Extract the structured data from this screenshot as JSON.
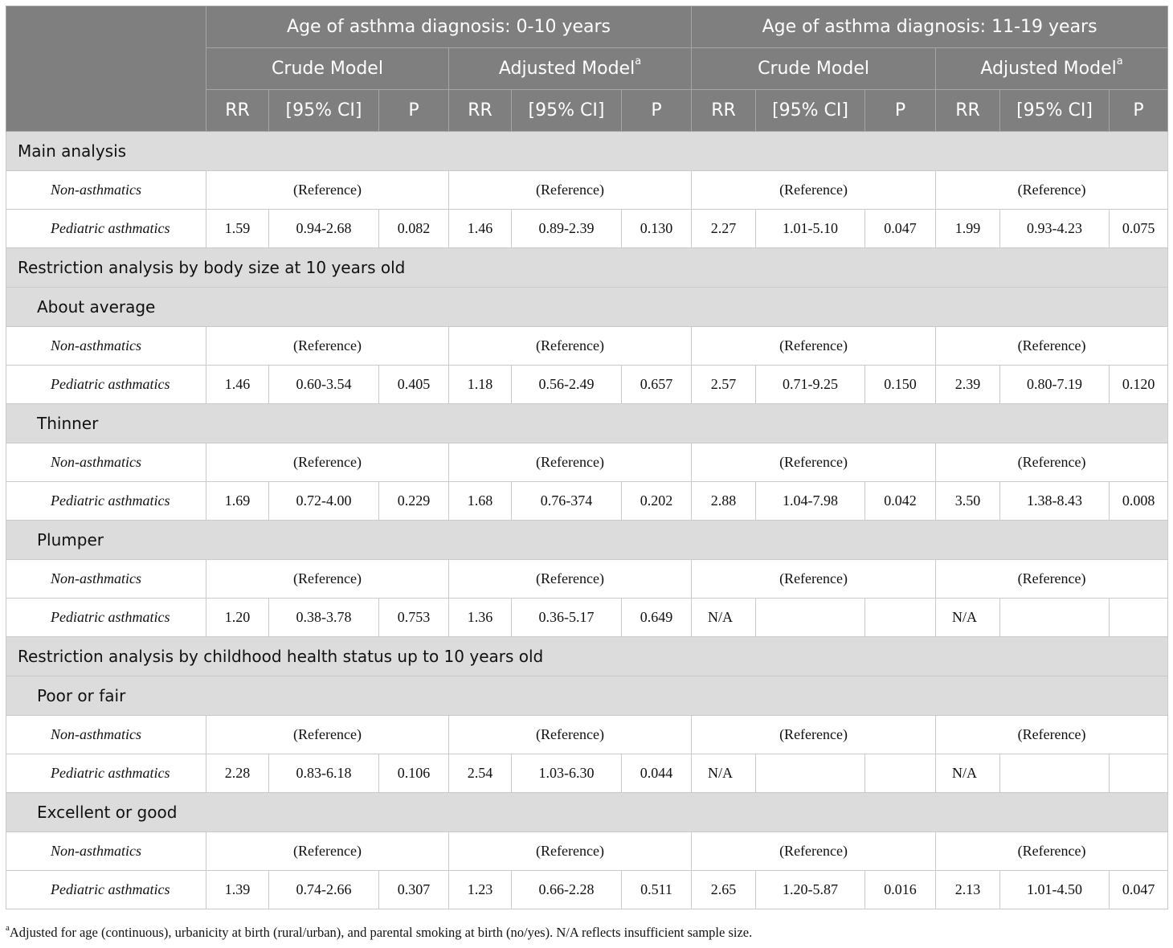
{
  "header": {
    "group_left": "Age of asthma diagnosis: 0-10 years",
    "group_right": "Age of asthma diagnosis: 11-19 years",
    "crude_model": "Crude Model",
    "adjusted_model": "Adjusted Model",
    "adjusted_sup": "a",
    "col_rr": "RR",
    "col_ci": "[95% CI]",
    "col_p": "P"
  },
  "rows": [
    {
      "type": "section",
      "label": "Main analysis"
    },
    {
      "type": "ref",
      "label": "Non-asthmatics",
      "ref": "(Reference)"
    },
    {
      "type": "data",
      "label": "Pediatric asthmatics",
      "values": [
        "1.59",
        "0.94-2.68",
        "0.082",
        "1.46",
        "0.89-2.39",
        "0.130",
        "2.27",
        "1.01-5.10",
        "0.047",
        "1.99",
        "0.93-4.23",
        "0.075"
      ]
    },
    {
      "type": "section",
      "label": "Restriction analysis by body size at 10 years old"
    },
    {
      "type": "sub",
      "label": "About average"
    },
    {
      "type": "ref",
      "label": "Non-asthmatics",
      "ref": "(Reference)"
    },
    {
      "type": "data",
      "label": "Pediatric asthmatics",
      "values": [
        "1.46",
        "0.60-3.54",
        "0.405",
        "1.18",
        "0.56-2.49",
        "0.657",
        "2.57",
        "0.71-9.25",
        "0.150",
        "2.39",
        "0.80-7.19",
        "0.120"
      ]
    },
    {
      "type": "sub",
      "label": "Thinner"
    },
    {
      "type": "ref",
      "label": "Non-asthmatics",
      "ref": "(Reference)"
    },
    {
      "type": "data",
      "label": "Pediatric asthmatics",
      "values": [
        "1.69",
        "0.72-4.00",
        "0.229",
        "1.68",
        "0.76-374",
        "0.202",
        "2.88",
        "1.04-7.98",
        "0.042",
        "3.50",
        "1.38-8.43",
        "0.008"
      ]
    },
    {
      "type": "sub",
      "label": "Plumper"
    },
    {
      "type": "ref",
      "label": "Non-asthmatics",
      "ref": "(Reference)"
    },
    {
      "type": "data",
      "label": "Pediatric asthmatics",
      "values": [
        "1.20",
        "0.38-3.78",
        "0.753",
        "1.36",
        "0.36-5.17",
        "0.649",
        "N/A",
        "",
        "",
        "N/A",
        "",
        ""
      ]
    },
    {
      "type": "section",
      "label": "Restriction analysis by childhood health status up to 10 years old"
    },
    {
      "type": "sub",
      "label": "Poor or fair"
    },
    {
      "type": "ref",
      "label": "Non-asthmatics",
      "ref": "(Reference)"
    },
    {
      "type": "data",
      "label": "Pediatric asthmatics",
      "values": [
        "2.28",
        "0.83-6.18",
        "0.106",
        "2.54",
        "1.03-6.30",
        "0.044",
        "N/A",
        "",
        "",
        "N/A",
        "",
        ""
      ]
    },
    {
      "type": "sub",
      "label": "Excellent or good"
    },
    {
      "type": "ref",
      "label": "Non-asthmatics",
      "ref": "(Reference)"
    },
    {
      "type": "data",
      "label": "Pediatric asthmatics",
      "values": [
        "1.39",
        "0.74-2.66",
        "0.307",
        "1.23",
        "0.66-2.28",
        "0.511",
        "2.65",
        "1.20-5.87",
        "0.016",
        "2.13",
        "1.01-4.50",
        "0.047"
      ]
    }
  ],
  "footnote": {
    "mark": "a",
    "text": "Adjusted for age (continuous), urbanicity at birth (rural/urban), and parental smoking at birth (no/yes). N/A reflects insufficient sample size."
  }
}
